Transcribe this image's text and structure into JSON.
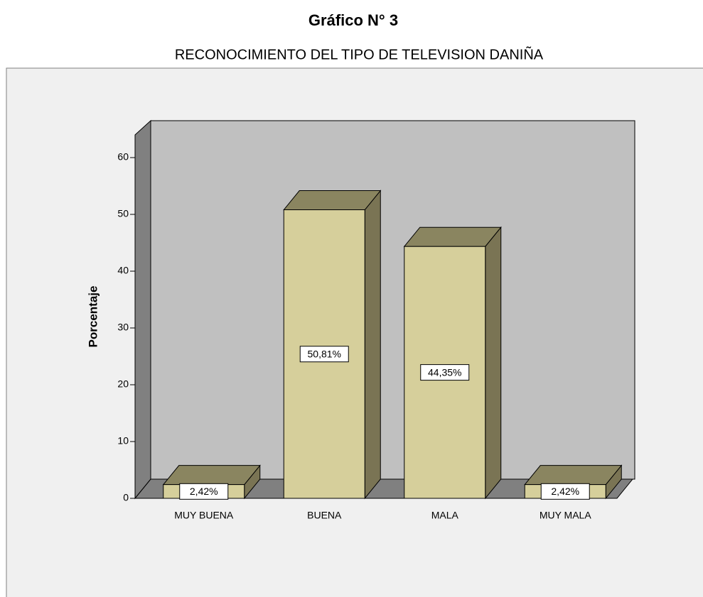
{
  "chart_data": {
    "type": "bar3d",
    "title": "Gráfico N° 3",
    "subtitle": "RECONOCIMIENTO DEL TIPO DE TELEVISION DANIÑA",
    "y_label": "Porcentaje",
    "categories": [
      "MUY BUENA",
      "BUENA",
      "MALA",
      "MUY MALA"
    ],
    "values": [
      2.42,
      50.81,
      44.35,
      2.42
    ],
    "value_labels": [
      "2,42%",
      "50,81%",
      "44,35%",
      "2,42%"
    ],
    "color": "#d6cf9b",
    "ylim": [
      0,
      64
    ],
    "yticks": [
      0,
      10,
      20,
      30,
      40,
      50,
      60
    ]
  }
}
